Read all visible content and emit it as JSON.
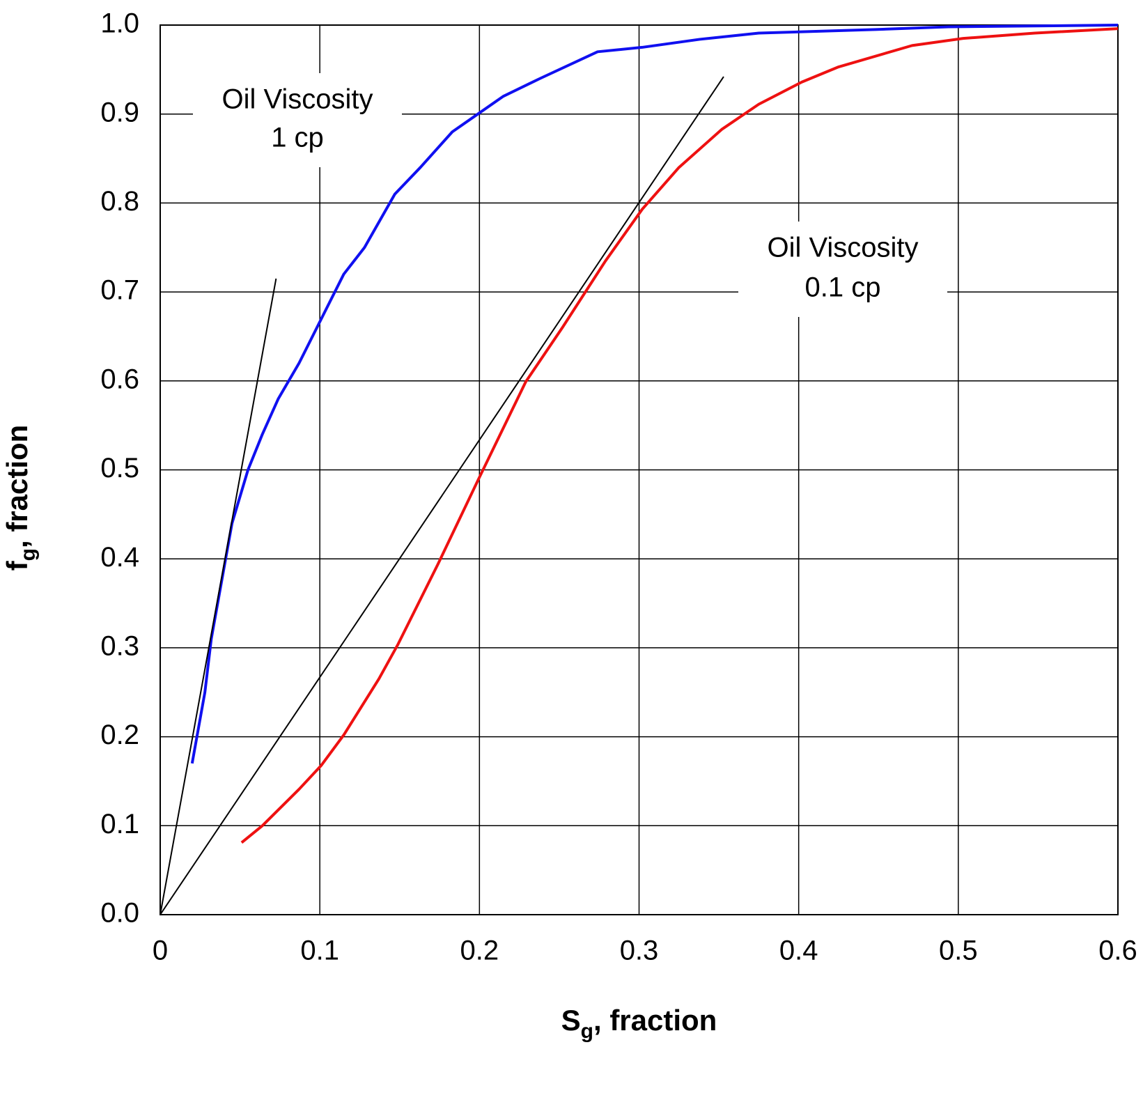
{
  "chart_data": {
    "type": "line",
    "xlabel": [
      "S",
      "g",
      ", fraction"
    ],
    "ylabel": [
      "f",
      "g",
      ", fraction"
    ],
    "xlim": [
      0,
      0.6
    ],
    "ylim": [
      0,
      1.0
    ],
    "xticks": [
      0,
      0.1,
      0.2,
      0.3,
      0.4,
      0.5,
      0.6
    ],
    "yticks": [
      {
        "value": 0,
        "label": "0.0"
      },
      0.1,
      0.2,
      0.3,
      0.4,
      0.5,
      0.6,
      0.7,
      0.8,
      0.9,
      {
        "value": 1,
        "label": "1.0"
      }
    ],
    "grid": true,
    "series": [
      {
        "color": "#1010f0",
        "width": 4,
        "x": [
          0.02,
          0.028,
          0.032,
          0.038,
          0.041,
          0.045,
          0.055,
          0.064,
          0.074,
          0.087,
          0.101,
          0.115,
          0.128,
          0.147,
          0.163,
          0.183,
          0.199,
          0.215,
          0.238,
          0.274,
          0.302,
          0.338,
          0.375,
          0.448,
          0.494,
          0.6
        ],
        "values": [
          0.17,
          0.25,
          0.31,
          0.37,
          0.4,
          0.44,
          0.5,
          0.54,
          0.58,
          0.62,
          0.67,
          0.72,
          0.75,
          0.81,
          0.84,
          0.88,
          0.9,
          0.92,
          0.94,
          0.97,
          0.975,
          0.984,
          0.991,
          0.995,
          0.998,
          1.0
        ]
      },
      {
        "color": "#ee1111",
        "width": 4,
        "x": [
          0.051,
          0.064,
          0.087,
          0.101,
          0.115,
          0.137,
          0.149,
          0.174,
          0.199,
          0.229,
          0.252,
          0.279,
          0.302,
          0.325,
          0.352,
          0.375,
          0.402,
          0.425,
          0.471,
          0.503,
          0.548,
          0.6
        ],
        "values": [
          0.081,
          0.1,
          0.141,
          0.168,
          0.202,
          0.265,
          0.304,
          0.394,
          0.488,
          0.599,
          0.66,
          0.735,
          0.793,
          0.84,
          0.883,
          0.911,
          0.936,
          0.953,
          0.977,
          0.985,
          0.991,
          0.996
        ]
      },
      {
        "color": "#000000",
        "width": 2,
        "x": [
          0,
          0.0726
        ],
        "values": [
          0,
          0.715
        ]
      },
      {
        "color": "#000000",
        "width": 2,
        "x": [
          0,
          0.353
        ],
        "values": [
          0,
          0.942
        ]
      }
    ],
    "annotations": [
      [
        "Oil Viscosity",
        "1 cp"
      ],
      [
        "Oil Viscosity",
        "0.1 cp"
      ]
    ]
  }
}
